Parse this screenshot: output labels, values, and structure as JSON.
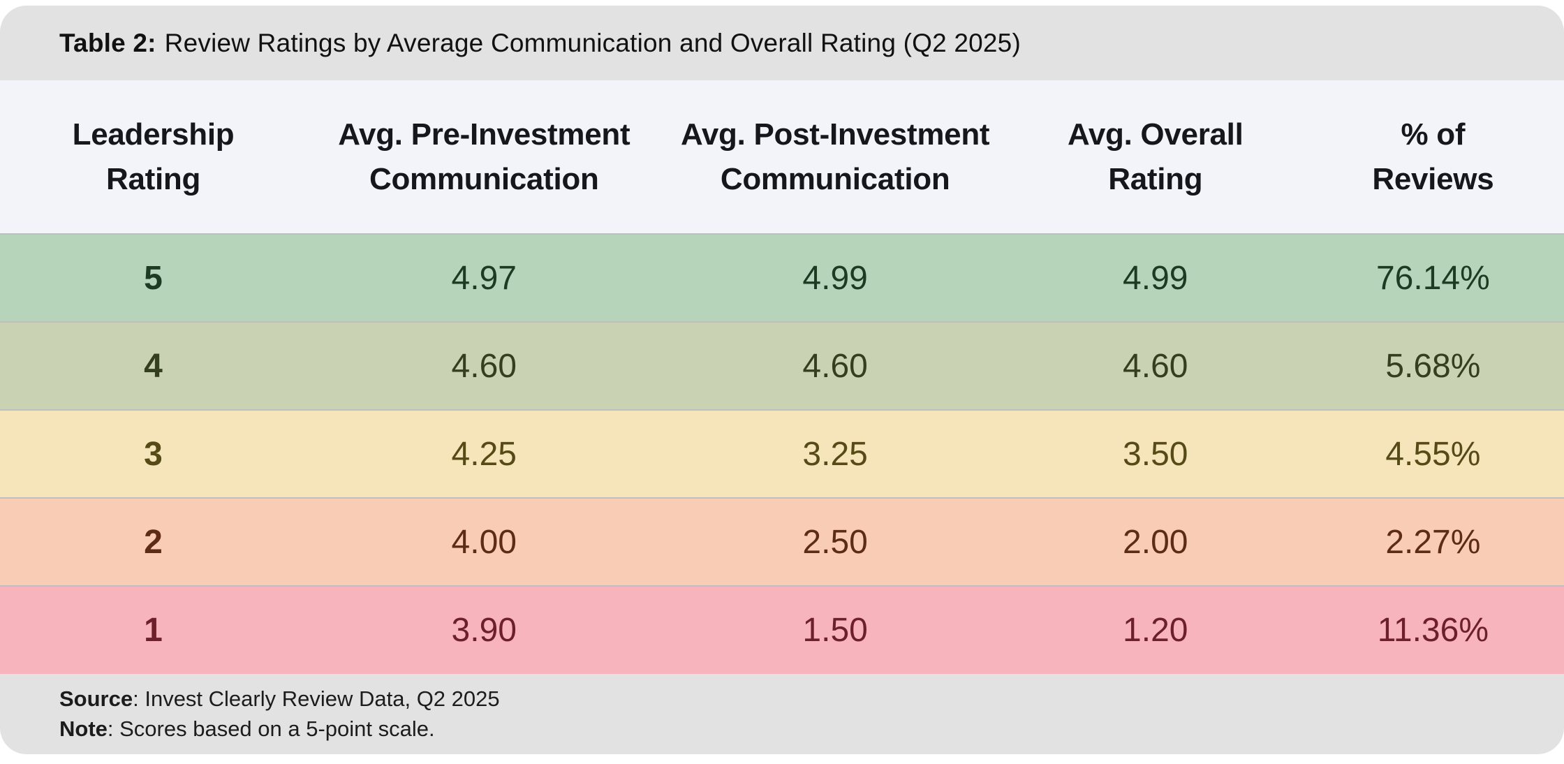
{
  "header": {
    "label": "Table 2:",
    "title": "Review Ratings by Average Communication and Overall Rating (Q2 2025)"
  },
  "table": {
    "columns": {
      "leadership": "Leadership Rating",
      "pre": "Avg. Pre-Investment Communication",
      "post": "Avg. Post-Investment Communication",
      "overall": "Avg. Overall Rating",
      "pct": "% of Reviews"
    },
    "rows": [
      {
        "rating": "5",
        "pre": "4.97",
        "post": "4.99",
        "overall": "4.99",
        "pct": "76.14%",
        "bg": "#b6d4ba",
        "fg": "#1d3b22"
      },
      {
        "rating": "4",
        "pre": "4.60",
        "post": "4.60",
        "overall": "4.60",
        "pct": "5.68%",
        "bg": "#c9d3b4",
        "fg": "#333f1f"
      },
      {
        "rating": "3",
        "pre": "4.25",
        "post": "3.25",
        "overall": "3.50",
        "pct": "4.55%",
        "bg": "#f6e4ba",
        "fg": "#564a17"
      },
      {
        "rating": "2",
        "pre": "4.00",
        "post": "2.50",
        "overall": "2.00",
        "pct": "2.27%",
        "bg": "#f8ccb5",
        "fg": "#5d2b18"
      },
      {
        "rating": "1",
        "pre": "3.90",
        "post": "1.50",
        "overall": "1.20",
        "pct": "11.36%",
        "bg": "#f8b4bd",
        "fg": "#6d2029"
      }
    ]
  },
  "footer": {
    "source_label": "Source",
    "source_rest": ": Invest Clearly Review Data, Q2 2025",
    "note_label": "Note",
    "note_rest": ": Scores based on a 5-point scale."
  },
  "colors": {
    "bar_gray": "#e2e2e2",
    "header_row": "#f3f4f9",
    "divider": "#bfbfbf",
    "row_green": "#b6d4ba",
    "row_olive": "#c9d3b4",
    "row_yellow": "#f6e4ba",
    "row_peach": "#f8ccb5",
    "row_pink": "#f8b4bd"
  },
  "chart_data": {
    "type": "table",
    "title": "Table 2: Review Ratings by Average Communication and Overall Rating (Q2 2025)",
    "columns": [
      "Leadership Rating",
      "Avg. Pre-Investment Communication",
      "Avg. Post-Investment Communication",
      "Avg. Overall Rating",
      "% of Reviews"
    ],
    "rows": [
      [
        5,
        4.97,
        4.99,
        4.99,
        76.14
      ],
      [
        4,
        4.6,
        4.6,
        4.6,
        5.68
      ],
      [
        3,
        4.25,
        3.25,
        3.5,
        4.55
      ],
      [
        2,
        4.0,
        2.5,
        2.0,
        2.27
      ],
      [
        1,
        3.9,
        1.5,
        1.2,
        11.36
      ]
    ],
    "pct_unit": "%",
    "row_color_scale": [
      "#b6d4ba",
      "#c9d3b4",
      "#f6e4ba",
      "#f8ccb5",
      "#f8b4bd"
    ],
    "source": "Invest Clearly Review Data, Q2 2025",
    "note": "Scores based on a 5-point scale."
  }
}
